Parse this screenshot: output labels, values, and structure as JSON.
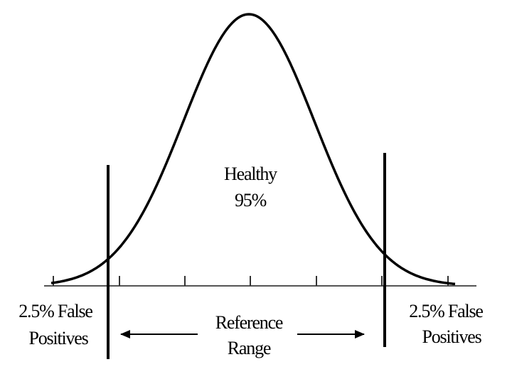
{
  "center_label": {
    "lines": [
      "Healthy",
      "95%"
    ]
  },
  "left_label": {
    "lines": [
      "2.5% False",
      "Positives"
    ]
  },
  "right_label": {
    "lines": [
      "2.5% False",
      "Positives"
    ]
  },
  "range_label": {
    "lines": [
      "Reference",
      "Range"
    ]
  }
}
